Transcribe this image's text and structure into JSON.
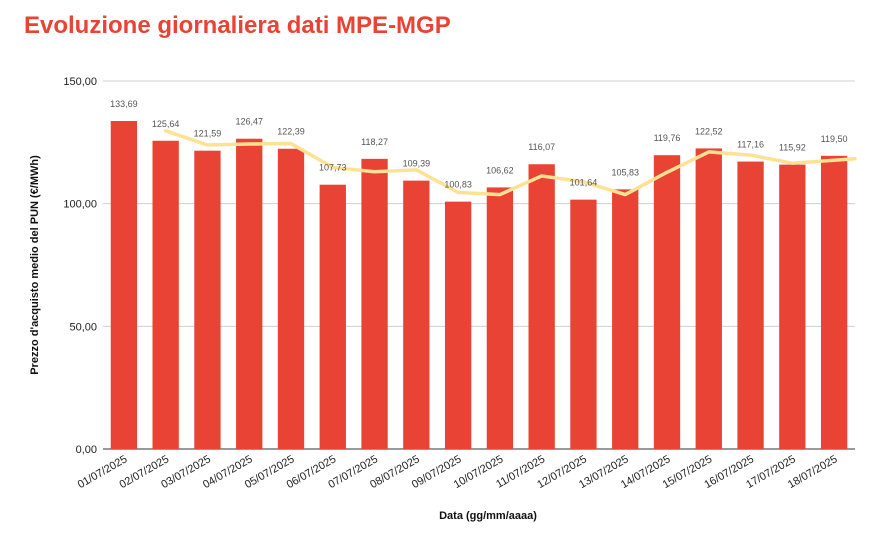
{
  "chart_data": {
    "type": "bar",
    "title": "Evoluzione giornaliera dati MPE-MGP",
    "xlabel": "Data (gg/mm/aaaa)",
    "ylabel": "Prezzo d'acquisto medio del PUN (€/MWh)",
    "ylim": [
      0,
      150
    ],
    "yticks": [
      "0,00",
      "50,00",
      "100,00",
      "150,00"
    ],
    "ytick_values": [
      0,
      50,
      100,
      150
    ],
    "grid": true,
    "bar_color": "#e84335",
    "trend_color": "#fde293",
    "title_color": "#e84335",
    "categories": [
      "01/07/2025",
      "02/07/2025",
      "03/07/2025",
      "04/07/2025",
      "05/07/2025",
      "06/07/2025",
      "07/07/2025",
      "08/07/2025",
      "09/07/2025",
      "10/07/2025",
      "11/07/2025",
      "12/07/2025",
      "13/07/2025",
      "14/07/2025",
      "15/07/2025",
      "16/07/2025",
      "17/07/2025",
      "18/07/2025"
    ],
    "values": [
      133.69,
      125.64,
      121.59,
      126.47,
      122.39,
      107.73,
      118.27,
      109.39,
      100.83,
      106.62,
      116.07,
      101.64,
      105.83,
      119.76,
      122.52,
      117.16,
      115.92,
      119.5
    ],
    "value_labels": [
      "133,69",
      "125,64",
      "121,59",
      "126,47",
      "122,39",
      "107,73",
      "118,27",
      "109,39",
      "100,83",
      "106,62",
      "116,07",
      "101,64",
      "105,83",
      "119,76",
      "122,52",
      "117,16",
      "115,92",
      "119,50"
    ],
    "trend": {
      "type": "line",
      "x": [
        "02/07/2025",
        "03/07/2025",
        "04/07/2025",
        "05/07/2025",
        "06/07/2025",
        "07/07/2025",
        "08/07/2025",
        "09/07/2025",
        "10/07/2025",
        "11/07/2025",
        "12/07/2025",
        "13/07/2025",
        "14/07/2025",
        "15/07/2025",
        "16/07/2025",
        "17/07/2025",
        "18/07/2025"
      ],
      "values": [
        129.7,
        123.9,
        124.3,
        124.5,
        114.8,
        113.0,
        113.8,
        104.6,
        103.7,
        111.3,
        108.9,
        103.7,
        112.8,
        121.1,
        119.8,
        116.5,
        117.7
      ]
    }
  }
}
